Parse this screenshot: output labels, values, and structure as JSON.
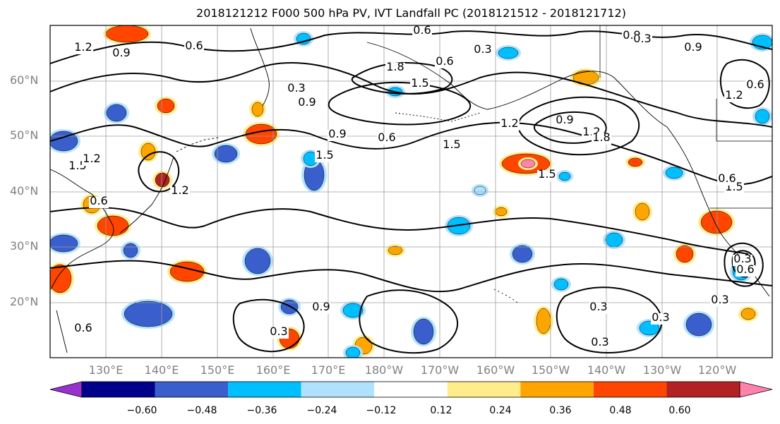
{
  "title": "2018121212 F000 500 hPa PV, IVT Landfall PC (2018121512 - 2018121712)",
  "map": {
    "lat_labels": [
      "60°N",
      "50°N",
      "40°N",
      "30°N",
      "20°N"
    ],
    "lon_labels": [
      "130°E",
      "140°E",
      "150°E",
      "160°E",
      "170°E",
      "180°W",
      "170°W",
      "160°W",
      "150°W",
      "140°W",
      "130°W",
      "120°W"
    ],
    "contour_labels": [
      "1.2",
      "0.9",
      "0.6",
      "0.6",
      "0.3",
      "0.9",
      "1.8",
      "1.5",
      "0.6",
      "0.3",
      "0.9",
      "0.9",
      "1.5",
      "0.6",
      "1.5",
      "1.2",
      "0.9",
      "1.2",
      "1.5",
      "1.8",
      "0.3",
      "0.9",
      "0.6",
      "1.2",
      "1.5",
      "0.6",
      "1.2",
      "0.3",
      "0.6",
      "0.3",
      "0.3",
      "0.3",
      "0.3",
      "0.9",
      "0.3",
      "0.6",
      "1.5",
      "0.6",
      "1.2"
    ]
  },
  "colorbar": {
    "labels": [
      "−0.60",
      "−0.48",
      "−0.36",
      "−0.24",
      "−0.12",
      "0.12",
      "0.24",
      "0.36",
      "0.48",
      "0.60"
    ],
    "colors": [
      "#9932cc",
      "#00008b",
      "#3a5fcd",
      "#00bfff",
      "#b0e2ff",
      "#ffffff",
      "#ffec8b",
      "#ffa500",
      "#ff4500",
      "#b22222",
      "#ff82ab"
    ]
  },
  "fill_colors": {
    "neg_light": "#b0e2ff",
    "neg_mid": "#00bfff",
    "neg_dark": "#3a5fcd",
    "neg_darkest": "#00008b",
    "pos_light": "#ffec8b",
    "pos_mid": "#ffa500",
    "pos_dark": "#ff4500",
    "pos_darker": "#b22222",
    "pos_max": "#ff82ab"
  }
}
